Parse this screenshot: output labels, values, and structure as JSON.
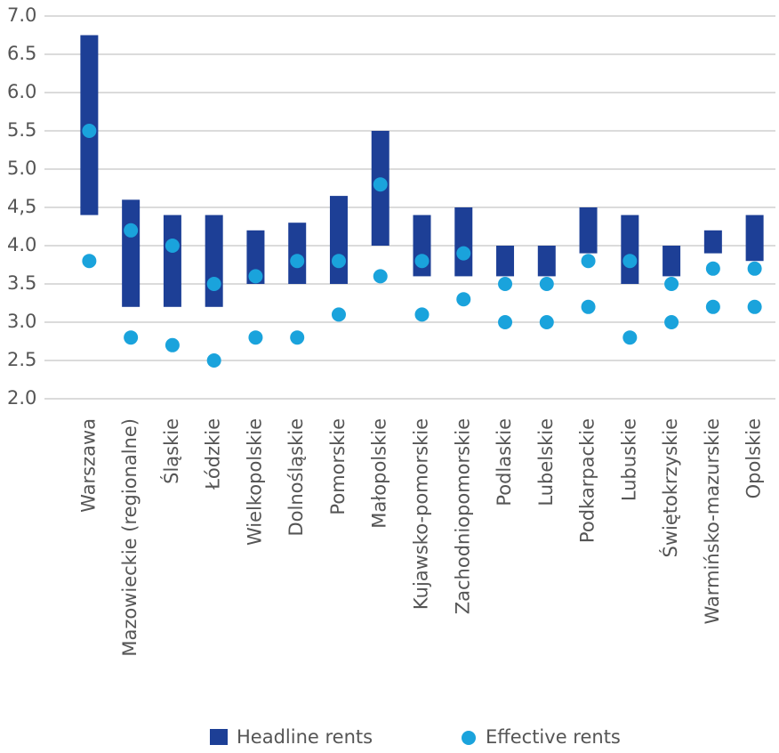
{
  "chart_data": {
    "type": "range-dot",
    "categories": [
      "Warszawa",
      "Mazowieckie (regionalne)",
      "Śląskie",
      "Łódzkie",
      "Wielkopolskie",
      "Dolnośląskie",
      "Pomorskie",
      "Małopolskie",
      "Kujawsko-pomorskie",
      "Zachodniopomorskie",
      "Podlaskie",
      "Lubelskie",
      "Podkarpackie",
      "Lubuskie",
      "Świętokrzyskie",
      "Warmińsko-mazurskie",
      "Opolskie"
    ],
    "series": [
      {
        "name": "Headline rents",
        "color": "#1d3f96",
        "values": [
          [
            4.4,
            6.75
          ],
          [
            3.2,
            4.6
          ],
          [
            3.2,
            4.4
          ],
          [
            3.2,
            4.4
          ],
          [
            3.5,
            4.2
          ],
          [
            3.5,
            4.3
          ],
          [
            3.5,
            4.65
          ],
          [
            4.0,
            5.5
          ],
          [
            3.6,
            4.4
          ],
          [
            3.6,
            4.5
          ],
          [
            3.6,
            4.0
          ],
          [
            3.6,
            4.0
          ],
          [
            3.9,
            4.5
          ],
          [
            3.5,
            4.4
          ],
          [
            3.6,
            4.0
          ],
          [
            3.9,
            4.2
          ],
          [
            3.8,
            4.4
          ]
        ]
      },
      {
        "name": "Effective rents",
        "color": "#1aa3dc",
        "values": [
          [
            3.8,
            5.5
          ],
          [
            2.8,
            4.2
          ],
          [
            2.7,
            4.0
          ],
          [
            2.5,
            3.5
          ],
          [
            2.8,
            3.6
          ],
          [
            2.8,
            3.8
          ],
          [
            3.1,
            3.8
          ],
          [
            3.6,
            4.8
          ],
          [
            3.1,
            3.8
          ],
          [
            3.3,
            3.9
          ],
          [
            3.0,
            3.5
          ],
          [
            3.0,
            3.5
          ],
          [
            3.2,
            3.8
          ],
          [
            2.8,
            3.8
          ],
          [
            3.0,
            3.5
          ],
          [
            3.2,
            3.7
          ],
          [
            3.2,
            3.7
          ]
        ]
      }
    ],
    "ylim": [
      2.0,
      7.0
    ],
    "yticks": [
      {
        "value": 2.0,
        "label": "2.0"
      },
      2.5,
      {
        "value": 3.0,
        "label": "3.0"
      },
      3.5,
      {
        "value": 4.0,
        "label": "4.0"
      },
      {
        "value": 4.5,
        "label": "4,5"
      },
      {
        "value": 5.0,
        "label": "5.0"
      },
      5.5,
      {
        "value": 6.0,
        "label": "6.0"
      },
      6.5,
      {
        "value": 7.0,
        "label": "7.0"
      }
    ],
    "grid": true,
    "legend": "bottom"
  }
}
